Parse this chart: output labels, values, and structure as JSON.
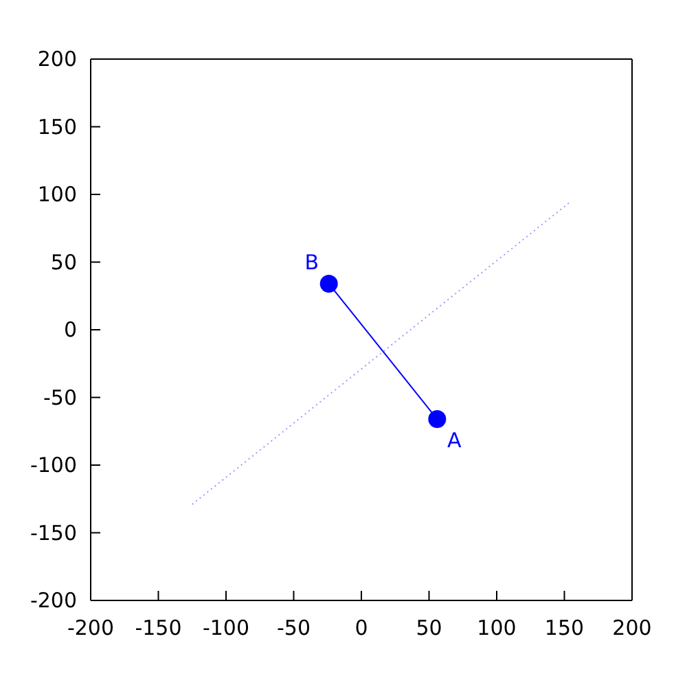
{
  "chart_data": {
    "type": "line",
    "xlim": [
      -200,
      200
    ],
    "ylim": [
      -200,
      200
    ],
    "xticks": [
      -200,
      -150,
      -100,
      -50,
      0,
      50,
      100,
      150,
      200
    ],
    "yticks": [
      -200,
      -150,
      -100,
      -50,
      0,
      50,
      100,
      150,
      200
    ],
    "series": [
      {
        "color": "#0000ff",
        "x": [
          56,
          -24
        ],
        "values": [
          -66,
          34
        ],
        "marker": "circle",
        "line_style": "solid"
      },
      {
        "color": "#9999ff",
        "x": [
          -125,
          155
        ],
        "values": [
          -129,
          95
        ],
        "marker": "none",
        "line_style": "dotted"
      }
    ],
    "annotations": [
      {
        "text": "A",
        "x": 56,
        "y": -66
      },
      {
        "text": "B",
        "x": -24,
        "y": 34
      }
    ]
  }
}
